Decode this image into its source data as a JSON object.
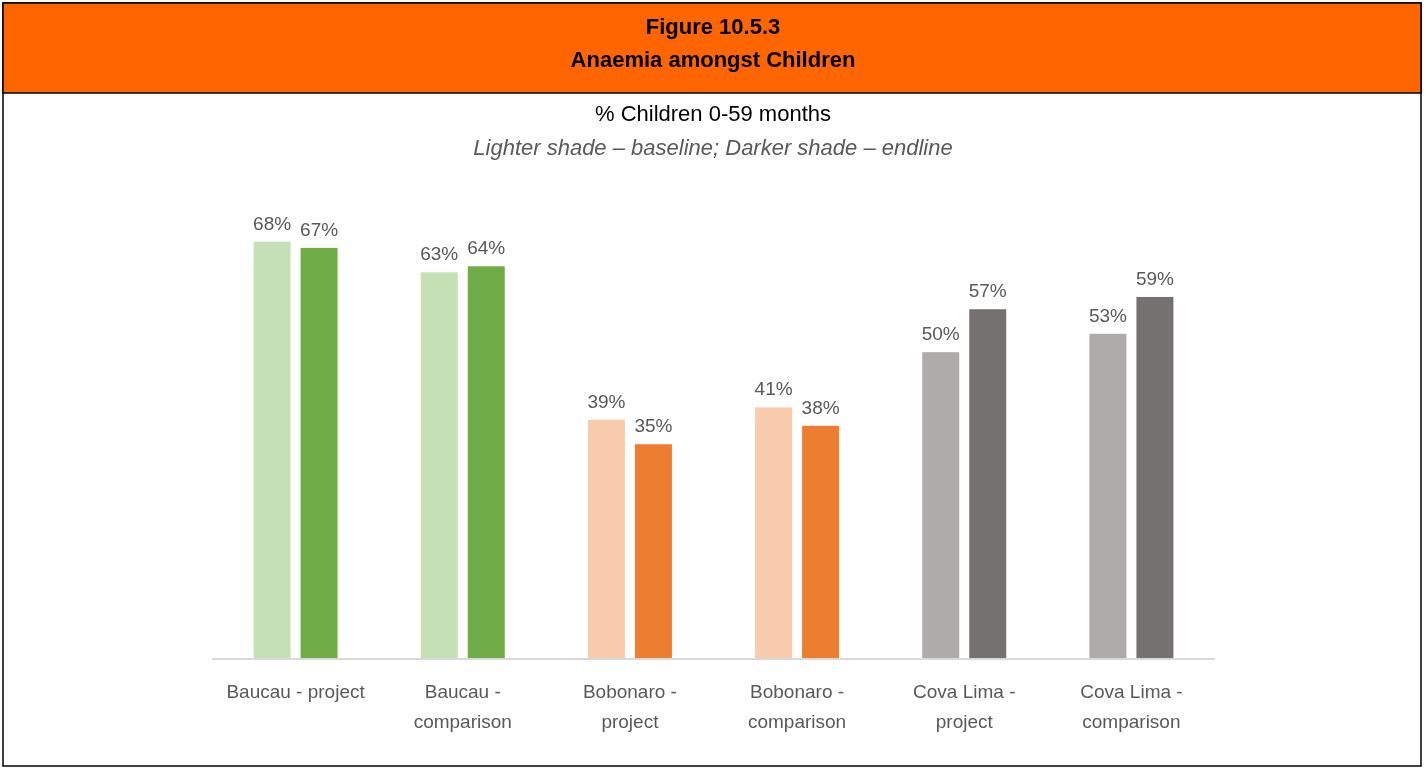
{
  "chart_data": {
    "type": "bar",
    "title": "Figure 10.5.3",
    "subtitle": "Anaemia amongst Children",
    "annotations": [
      "% Children 0-59 months",
      "Lighter shade – baseline; Darker shade – endline"
    ],
    "categories": [
      "Baucau - project",
      "Baucau - comparison",
      "Bobonaro - project",
      "Bobonaro - comparison",
      "Cova Lima - project",
      "Cova Lima - comparison"
    ],
    "series": [
      {
        "values": [
          68,
          63,
          39,
          41,
          50,
          53
        ],
        "colors": [
          "#c5e0b4",
          "#c5e0b4",
          "#f8cbad",
          "#f8cbad",
          "#afabab",
          "#afabab"
        ],
        "value_labels": [
          "68%",
          "63%",
          "39%",
          "41%",
          "50%",
          "53%"
        ]
      },
      {
        "values": [
          67,
          64,
          35,
          38,
          57,
          59
        ],
        "colors": [
          "#70ad47",
          "#70ad47",
          "#ed7d31",
          "#ed7d31",
          "#767171",
          "#767171"
        ],
        "value_labels": [
          "67%",
          "64%",
          "35%",
          "38%",
          "57%",
          "59%"
        ]
      }
    ]
  }
}
